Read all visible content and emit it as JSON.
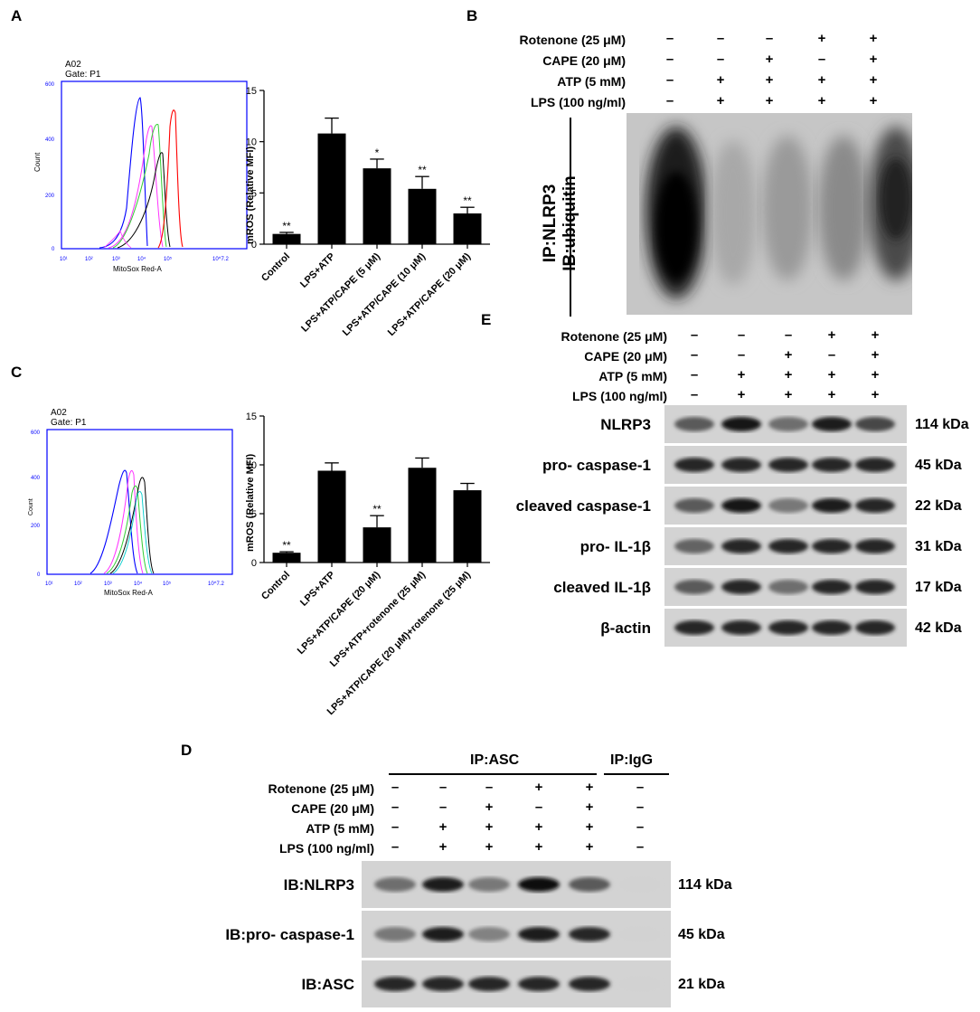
{
  "panels": {
    "A": "A",
    "B": "B",
    "C": "C",
    "D": "D",
    "E": "E"
  },
  "conditions": [
    "Rotenone (25 μM)",
    "CAPE (20 μM)",
    "ATP (5 mM)",
    "LPS (100 ng/ml)"
  ],
  "conditions_d": [
    "Rotenone (25 μM)",
    "CAPE (20 μM)",
    "ATP (5 mM)",
    "LPS (100 ng/ml)"
  ],
  "lane_symbols": {
    "rotenone": [
      "–",
      "–",
      "–",
      "+",
      "+"
    ],
    "cape": [
      "–",
      "–",
      "+",
      "–",
      "+"
    ],
    "atp": [
      "–",
      "+",
      "+",
      "+",
      "+"
    ],
    "lps": [
      "–",
      "+",
      "+",
      "+",
      "+"
    ]
  },
  "igg_symbols": [
    "–",
    "–",
    "–",
    "–"
  ],
  "flow": {
    "sample": "A02",
    "gate": "Gate: P1",
    "ylabel": "Count",
    "xlabel": "MitoSox Red-A",
    "yticks_a": [
      "0",
      "200",
      "400",
      "600"
    ],
    "yticks_c": [
      "0",
      "200",
      "400",
      "600"
    ],
    "xticks": [
      "10¹",
      "10²",
      "10³",
      "10⁴",
      "10⁵",
      "10^7.2"
    ]
  },
  "panel_b": {
    "side_label_1": "IP:NLRP3",
    "side_label_2": "IB:ubiquitin"
  },
  "panel_e": {
    "rows": [
      {
        "label": "NLRP3",
        "kda": "114 kDa"
      },
      {
        "label": "pro- caspase-1",
        "kda": "45  kDa"
      },
      {
        "label": "cleaved caspase-1",
        "kda": "22  kDa"
      },
      {
        "label": "pro- IL-1β",
        "kda": "31  kDa"
      },
      {
        "label": "cleaved IL-1β",
        "kda": "17  kDa"
      },
      {
        "label": "β-actin",
        "kda": "42  kDa"
      }
    ]
  },
  "panel_d": {
    "ip_asc": "IP:ASC",
    "ip_igg": "IP:IgG",
    "rows": [
      {
        "label": "IB:NLRP3",
        "kda": "114 kDa"
      },
      {
        "label": "IB:pro- caspase-1",
        "kda": "45  kDa"
      },
      {
        "label": "IB:ASC",
        "kda": "21  kDa"
      }
    ]
  },
  "chart_data": [
    {
      "type": "bar",
      "ylabel": "mROS (Relative MFI)",
      "ylim": [
        0,
        15
      ],
      "yticks": [
        0,
        5,
        10,
        15
      ],
      "categories": [
        "Control",
        "LPS+ATP",
        "LPS+ATP/CAPE (5 μM)",
        "LPS+ATP/CAPE (10 μM)",
        "LPS+ATP/CAPE (20 μM)"
      ],
      "values": [
        1.0,
        10.8,
        7.4,
        5.4,
        3.0
      ],
      "errors": [
        0.15,
        1.5,
        0.9,
        1.2,
        0.6
      ],
      "annotations": [
        "**",
        "",
        "*",
        "**",
        "**"
      ]
    },
    {
      "type": "bar",
      "ylabel": "mROS (Relative MFI)",
      "ylim": [
        0,
        15
      ],
      "yticks": [
        0,
        5,
        10,
        15
      ],
      "categories": [
        "Control",
        "LPS+ATP",
        "LPS+ATP/CAPE (20 μM)",
        "LPS+ATP+rotenone (25 μM)",
        "LPS+ATP/CAPE (20 μM)+rotenone (25 μM)"
      ],
      "values": [
        1.0,
        9.4,
        3.6,
        9.7,
        7.4
      ],
      "errors": [
        0.1,
        0.8,
        1.2,
        1.0,
        0.7
      ],
      "annotations": [
        "**",
        "",
        "**",
        "",
        ""
      ]
    }
  ],
  "colors": {
    "flow_frame": "#0000ff",
    "flow_tick": "#0000ff"
  }
}
